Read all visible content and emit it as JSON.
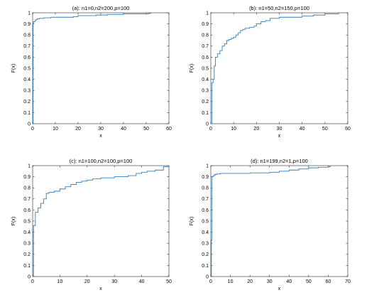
{
  "chart_data": [
    {
      "type": "line",
      "title": "(a): n1=0,n2=200,p=100",
      "xlabel": "x",
      "ylabel": "F(x)",
      "xlim": [
        0,
        60
      ],
      "ylim": [
        0,
        1
      ],
      "xticks": [
        "0",
        "10",
        "20",
        "30",
        "40",
        "50",
        "60"
      ],
      "yticks": [
        "0",
        "0.1",
        "0.2",
        "0.3",
        "0.4",
        "0.5",
        "0.6",
        "0.7",
        "0.8",
        "0.9",
        "1"
      ],
      "grid": false,
      "series_color": "#2c7fc4",
      "x": [
        0,
        0.2,
        0.4,
        1,
        1.5,
        2,
        3,
        5,
        8,
        10,
        18,
        20,
        25,
        28,
        33,
        35,
        40,
        45,
        51,
        52
      ],
      "y": [
        0,
        0.9,
        0.92,
        0.93,
        0.94,
        0.945,
        0.95,
        0.955,
        0.96,
        0.96,
        0.965,
        0.975,
        0.975,
        0.98,
        0.985,
        0.985,
        0.99,
        0.99,
        0.995,
        1.0
      ]
    },
    {
      "type": "line",
      "title": "(b): n1=50,n2=150,p=100",
      "xlabel": "x",
      "ylabel": "F(x)",
      "xlim": [
        0,
        60
      ],
      "ylim": [
        0,
        1
      ],
      "xticks": [
        "0",
        "10",
        "20",
        "30",
        "40",
        "50",
        "60"
      ],
      "yticks": [
        "0",
        "0.1",
        "0.2",
        "0.3",
        "0.4",
        "0.5",
        "0.6",
        "0.7",
        "0.8",
        "0.9",
        "1"
      ],
      "grid": false,
      "series_color": "#2c7fc4",
      "x": [
        0,
        0.5,
        1,
        1.5,
        2,
        3,
        4,
        5,
        6,
        7,
        8,
        9,
        10,
        11,
        12,
        13,
        14,
        15,
        17,
        19,
        20,
        22,
        24,
        26,
        28,
        30,
        35,
        40,
        45,
        50,
        56
      ],
      "y": [
        0,
        0.37,
        0.4,
        0.52,
        0.6,
        0.63,
        0.66,
        0.7,
        0.72,
        0.75,
        0.76,
        0.77,
        0.78,
        0.8,
        0.82,
        0.84,
        0.85,
        0.86,
        0.87,
        0.88,
        0.9,
        0.92,
        0.93,
        0.95,
        0.95,
        0.96,
        0.96,
        0.97,
        0.98,
        0.99,
        1.0
      ]
    },
    {
      "type": "line",
      "title": "(c): n1=100,n2=100,p=100",
      "xlabel": "x",
      "ylabel": "F(x)",
      "xlim": [
        0,
        50
      ],
      "ylim": [
        0,
        1
      ],
      "xticks": [
        "0",
        "10",
        "20",
        "30",
        "40",
        "50"
      ],
      "yticks": [
        "0",
        "0.1",
        "0.2",
        "0.3",
        "0.4",
        "0.5",
        "0.6",
        "0.7",
        "0.8",
        "0.9",
        "1"
      ],
      "grid": false,
      "series_color": "#2c7fc4",
      "x": [
        0,
        0.3,
        1,
        2,
        3,
        4,
        5,
        6,
        8,
        10,
        12,
        14,
        16,
        18,
        20,
        22,
        25,
        28,
        30,
        35,
        38,
        40,
        42,
        45,
        48,
        50
      ],
      "y": [
        0,
        0.46,
        0.58,
        0.62,
        0.66,
        0.7,
        0.75,
        0.76,
        0.77,
        0.79,
        0.81,
        0.83,
        0.85,
        0.86,
        0.87,
        0.88,
        0.89,
        0.89,
        0.9,
        0.91,
        0.93,
        0.94,
        0.95,
        0.96,
        0.99,
        1.0
      ]
    },
    {
      "type": "line",
      "title": "(d): n1=199,n2=1,p=100",
      "xlabel": "x",
      "ylabel": "F(x)",
      "xlim": [
        0,
        70
      ],
      "ylim": [
        0,
        1
      ],
      "xticks": [
        "0",
        "10",
        "20",
        "30",
        "40",
        "50",
        "60",
        "70"
      ],
      "yticks": [
        "0",
        "0.1",
        "0.2",
        "0.3",
        "0.4",
        "0.5",
        "0.6",
        "0.7",
        "0.8",
        "0.9",
        "1"
      ],
      "grid": false,
      "series_color": "#2c7fc4",
      "x": [
        0,
        0.3,
        0.6,
        1.2,
        2,
        3,
        5,
        10,
        20,
        30,
        35,
        40,
        45,
        50,
        55,
        60,
        61
      ],
      "y": [
        0,
        0.33,
        0.9,
        0.91,
        0.92,
        0.925,
        0.93,
        0.93,
        0.935,
        0.94,
        0.95,
        0.96,
        0.97,
        0.98,
        0.985,
        0.99,
        1.0
      ]
    }
  ]
}
